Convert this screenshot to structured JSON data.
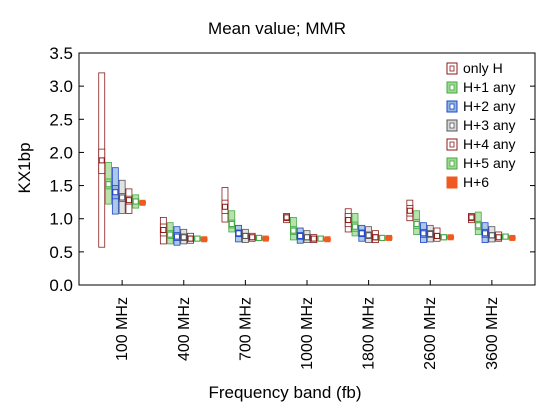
{
  "chart_data": {
    "type": "boxplot",
    "title": "Mean value; MMR",
    "xlabel": "Frequency band (fb)",
    "ylabel": "KX1bp",
    "ylim": [
      0.0,
      3.5
    ],
    "yticks": [
      "0.0",
      "0.5",
      "1.0",
      "1.5",
      "2.0",
      "2.5",
      "3.0",
      "3.5"
    ],
    "categories": [
      "100 MHz",
      "400 MHz",
      "700 MHz",
      "1000 MHz",
      "1800 MHz",
      "2600 MHz",
      "3600 MHz"
    ],
    "legend_position": "top-right",
    "series": [
      {
        "name": "only H",
        "edge": "#8b1a1a",
        "fill": "#ffffff",
        "stats": [
          [
            1.88,
            1.68,
            2.05,
            0.57,
            3.2
          ],
          [
            0.83,
            0.74,
            0.92,
            0.62,
            1.02
          ],
          [
            1.18,
            1.08,
            1.28,
            0.95,
            1.47
          ],
          [
            1.02,
            0.97,
            1.06,
            0.94,
            1.08
          ],
          [
            0.98,
            0.88,
            1.08,
            0.8,
            1.15
          ],
          [
            1.12,
            1.04,
            1.2,
            0.97,
            1.28
          ],
          [
            1.02,
            0.97,
            1.06,
            0.94,
            1.08
          ]
        ]
      },
      {
        "name": "H+1 any",
        "edge": "#44aa44",
        "fill": "#9fd88f",
        "stats": [
          [
            1.52,
            1.45,
            1.6,
            1.22,
            1.85
          ],
          [
            0.76,
            0.7,
            0.82,
            0.62,
            0.94
          ],
          [
            0.92,
            0.86,
            0.98,
            0.8,
            1.12
          ],
          [
            0.82,
            0.76,
            0.88,
            0.68,
            1.02
          ],
          [
            0.88,
            0.81,
            0.95,
            0.74,
            1.08
          ],
          [
            0.92,
            0.85,
            0.99,
            0.76,
            1.12
          ],
          [
            0.9,
            0.84,
            0.96,
            0.76,
            1.1
          ]
        ]
      },
      {
        "name": "H+2 any",
        "edge": "#2244cc",
        "fill": "#8fb8e0",
        "stats": [
          [
            1.4,
            1.3,
            1.5,
            1.07,
            1.77
          ],
          [
            0.73,
            0.67,
            0.79,
            0.6,
            0.88
          ],
          [
            0.78,
            0.73,
            0.83,
            0.65,
            0.9
          ],
          [
            0.74,
            0.69,
            0.79,
            0.63,
            0.86
          ],
          [
            0.78,
            0.73,
            0.83,
            0.66,
            0.9
          ],
          [
            0.78,
            0.72,
            0.84,
            0.64,
            0.94
          ],
          [
            0.78,
            0.72,
            0.84,
            0.64,
            0.94
          ]
        ]
      },
      {
        "name": "H+3 any",
        "edge": "#555555",
        "fill": "#d8d8d8",
        "stats": [
          [
            1.32,
            1.26,
            1.38,
            1.08,
            1.58
          ],
          [
            0.72,
            0.67,
            0.77,
            0.62,
            0.84
          ],
          [
            0.74,
            0.7,
            0.78,
            0.64,
            0.84
          ],
          [
            0.72,
            0.68,
            0.76,
            0.64,
            0.82
          ],
          [
            0.75,
            0.7,
            0.8,
            0.64,
            0.88
          ],
          [
            0.77,
            0.72,
            0.82,
            0.65,
            0.9
          ],
          [
            0.75,
            0.71,
            0.79,
            0.65,
            0.88
          ]
        ]
      },
      {
        "name": "H+4 any",
        "edge": "#8b1a1a",
        "fill": "#ffffff",
        "stats": [
          [
            1.28,
            1.22,
            1.34,
            1.08,
            1.45
          ],
          [
            0.7,
            0.66,
            0.74,
            0.63,
            0.78
          ],
          [
            0.72,
            0.69,
            0.75,
            0.66,
            0.78
          ],
          [
            0.7,
            0.67,
            0.73,
            0.64,
            0.76
          ],
          [
            0.72,
            0.68,
            0.76,
            0.64,
            0.82
          ],
          [
            0.74,
            0.7,
            0.78,
            0.66,
            0.86
          ],
          [
            0.72,
            0.69,
            0.75,
            0.66,
            0.8
          ]
        ]
      },
      {
        "name": "H+5 any",
        "edge": "#44aa44",
        "fill": "#9fd88f",
        "stats": [
          [
            1.26,
            1.22,
            1.3,
            1.16,
            1.36
          ],
          [
            0.7,
            0.68,
            0.72,
            0.66,
            0.74
          ],
          [
            0.71,
            0.69,
            0.73,
            0.67,
            0.75
          ],
          [
            0.7,
            0.68,
            0.72,
            0.66,
            0.74
          ],
          [
            0.71,
            0.69,
            0.73,
            0.67,
            0.75
          ],
          [
            0.72,
            0.7,
            0.74,
            0.68,
            0.76
          ],
          [
            0.73,
            0.71,
            0.75,
            0.69,
            0.77
          ]
        ]
      },
      {
        "name": "H+6",
        "edge": "#f05a20",
        "fill": "#f05a20",
        "stats": [
          [
            1.24,
            1.22,
            1.26,
            1.22,
            1.26
          ],
          [
            0.69,
            0.67,
            0.71,
            0.67,
            0.71
          ],
          [
            0.7,
            0.68,
            0.72,
            0.68,
            0.72
          ],
          [
            0.69,
            0.67,
            0.71,
            0.67,
            0.71
          ],
          [
            0.71,
            0.69,
            0.73,
            0.69,
            0.73
          ],
          [
            0.72,
            0.7,
            0.74,
            0.7,
            0.74
          ],
          [
            0.71,
            0.69,
            0.73,
            0.69,
            0.73
          ]
        ]
      }
    ]
  }
}
